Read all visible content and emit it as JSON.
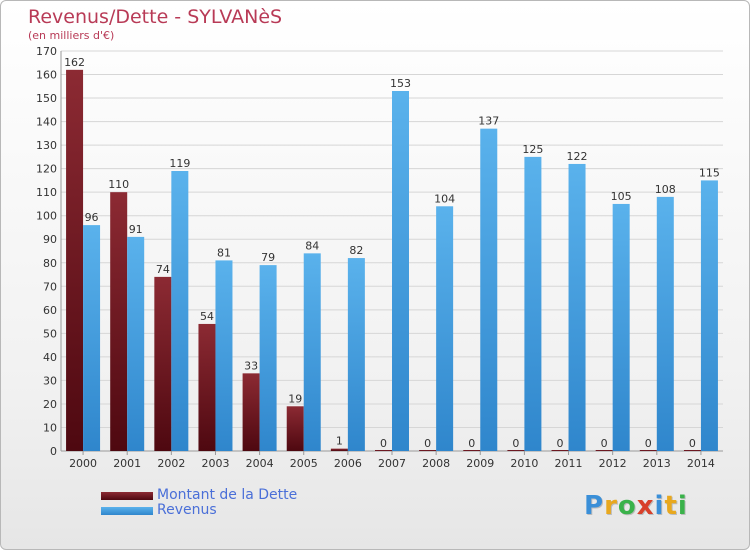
{
  "header": {
    "title": "Revenus/Dette - SYLVANèS",
    "subtitle": "(en milliers d'€)"
  },
  "logo": {
    "letters": [
      "P",
      "r",
      "o",
      "x",
      "i",
      "t",
      "i"
    ],
    "colors": [
      "#3a8fd8",
      "#e8a81e",
      "#3ab24a",
      "#d8402a",
      "#3a8fd8",
      "#e8a81e",
      "#3ab24a"
    ]
  },
  "chart_data": {
    "type": "bar",
    "categories": [
      "2000",
      "2001",
      "2002",
      "2003",
      "2004",
      "2005",
      "2006",
      "2007",
      "2008",
      "2009",
      "2010",
      "2011",
      "2012",
      "2013",
      "2014"
    ],
    "series": [
      {
        "name": "Montant de la Dette",
        "color": "#7a1a22",
        "values": [
          162,
          110,
          74,
          54,
          33,
          19,
          1,
          0,
          0,
          0,
          0,
          0,
          0,
          0,
          0
        ]
      },
      {
        "name": "Revenus",
        "color": "#4aa3e4",
        "values": [
          96,
          91,
          119,
          81,
          79,
          84,
          82,
          153,
          104,
          137,
          125,
          122,
          105,
          108,
          115
        ]
      }
    ],
    "ylim": [
      0,
      170
    ],
    "yticks": [
      0,
      10,
      20,
      30,
      40,
      50,
      60,
      70,
      80,
      90,
      100,
      110,
      120,
      130,
      140,
      150,
      160,
      170
    ],
    "grid": true,
    "legend_position": "bottom-left"
  }
}
